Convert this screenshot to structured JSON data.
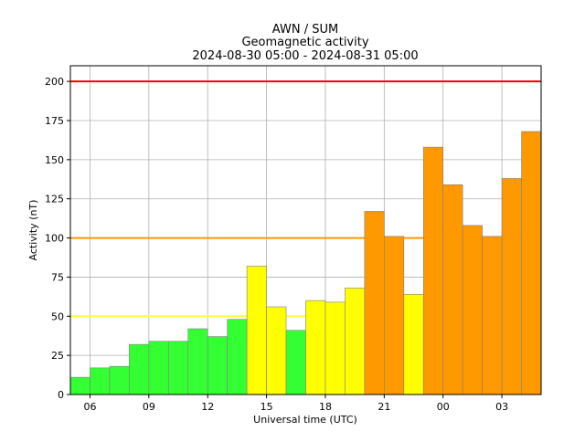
{
  "chart_data": {
    "type": "bar",
    "title_lines": [
      "AWN / SUM",
      "Geomagnetic activity",
      "2024-08-30 05:00 - 2024-08-31 05:00"
    ],
    "xlabel": "Universal time (UTC)",
    "ylabel": "Activity (nT)",
    "ylim": [
      0,
      210
    ],
    "xlim_hours": [
      5,
      29
    ],
    "grid": true,
    "yticks": [
      0,
      25,
      50,
      75,
      100,
      125,
      150,
      175,
      200
    ],
    "xticks": [
      {
        "hour": 6,
        "label": "06"
      },
      {
        "hour": 9,
        "label": "09"
      },
      {
        "hour": 12,
        "label": "12"
      },
      {
        "hour": 15,
        "label": "15"
      },
      {
        "hour": 18,
        "label": "18"
      },
      {
        "hour": 21,
        "label": "21"
      },
      {
        "hour": 24,
        "label": "00"
      },
      {
        "hour": 27,
        "label": "03"
      }
    ],
    "bars": [
      {
        "start_hour": 5,
        "value": 11
      },
      {
        "start_hour": 6,
        "value": 17
      },
      {
        "start_hour": 7,
        "value": 18
      },
      {
        "start_hour": 8,
        "value": 32
      },
      {
        "start_hour": 9,
        "value": 34
      },
      {
        "start_hour": 10,
        "value": 34
      },
      {
        "start_hour": 11,
        "value": 42
      },
      {
        "start_hour": 12,
        "value": 37
      },
      {
        "start_hour": 13,
        "value": 48
      },
      {
        "start_hour": 14,
        "value": 82
      },
      {
        "start_hour": 15,
        "value": 56
      },
      {
        "start_hour": 16,
        "value": 41
      },
      {
        "start_hour": 17,
        "value": 60
      },
      {
        "start_hour": 18,
        "value": 59
      },
      {
        "start_hour": 19,
        "value": 68
      },
      {
        "start_hour": 20,
        "value": 117
      },
      {
        "start_hour": 21,
        "value": 101
      },
      {
        "start_hour": 22,
        "value": 64
      },
      {
        "start_hour": 23,
        "value": 158
      },
      {
        "start_hour": 24,
        "value": 134
      },
      {
        "start_hour": 25,
        "value": 108
      },
      {
        "start_hour": 26,
        "value": 101
      },
      {
        "start_hour": 27,
        "value": 138
      },
      {
        "start_hour": 28,
        "value": 168
      }
    ],
    "color_levels": [
      {
        "min": 0,
        "color": "#33ff33"
      },
      {
        "min": 50,
        "color": "#ffff00"
      },
      {
        "min": 100,
        "color": "#ff9900"
      },
      {
        "min": 200,
        "color": "#ff0000"
      }
    ],
    "threshold_lines": [
      {
        "value": 50,
        "color": "#ffff33"
      },
      {
        "value": 100,
        "color": "#ff9900"
      },
      {
        "value": 200,
        "color": "#ff0000"
      }
    ]
  }
}
